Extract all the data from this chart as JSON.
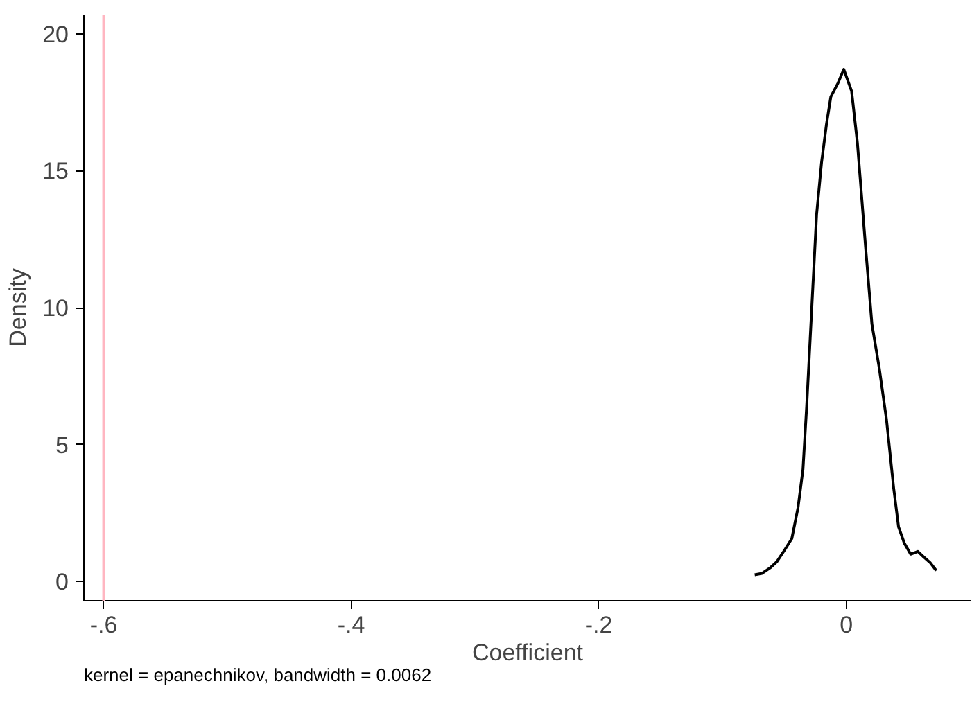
{
  "chart_data": {
    "type": "line",
    "xlabel": "Coefficient",
    "ylabel": "Density",
    "annotations": [
      "kernel = epanechnikov, bandwidth = 0.0062"
    ],
    "xlim": [
      -0.616,
      0.101
    ],
    "ylim": [
      -0.7,
      20.7
    ],
    "xticks": [
      {
        "value": -0.6,
        "label": "-.6"
      },
      {
        "value": -0.4,
        "label": "-.4"
      },
      {
        "value": -0.2,
        "label": "-.2"
      },
      0
    ],
    "yticks": [
      0,
      5,
      10,
      15,
      20
    ],
    "grid": false,
    "ref_lines": [
      {
        "axis": "x",
        "value": -0.6,
        "label": null,
        "color": "#ffb6c1"
      }
    ],
    "series": [
      {
        "color": "#000000",
        "x": [
          -0.074,
          -0.068,
          -0.061,
          -0.056,
          -0.05,
          -0.044,
          -0.039,
          -0.035,
          -0.032,
          -0.028,
          -0.024,
          -0.02,
          -0.016,
          -0.0125,
          -0.0067,
          -0.002,
          0.0043,
          0.009,
          0.0156,
          0.0207,
          0.0266,
          0.0325,
          0.0383,
          0.0422,
          0.0469,
          0.052,
          0.0578,
          0.0625,
          0.0676,
          0.0727
        ],
        "values": [
          0.25,
          0.3,
          0.52,
          0.73,
          1.14,
          1.57,
          2.7,
          4.1,
          6.4,
          9.9,
          13.4,
          15.3,
          16.7,
          17.7,
          18.2,
          18.7,
          17.9,
          16.0,
          12.2,
          9.4,
          7.8,
          5.9,
          3.4,
          2.0,
          1.4,
          1.0,
          1.1,
          0.9,
          0.7,
          0.4
        ]
      }
    ]
  }
}
